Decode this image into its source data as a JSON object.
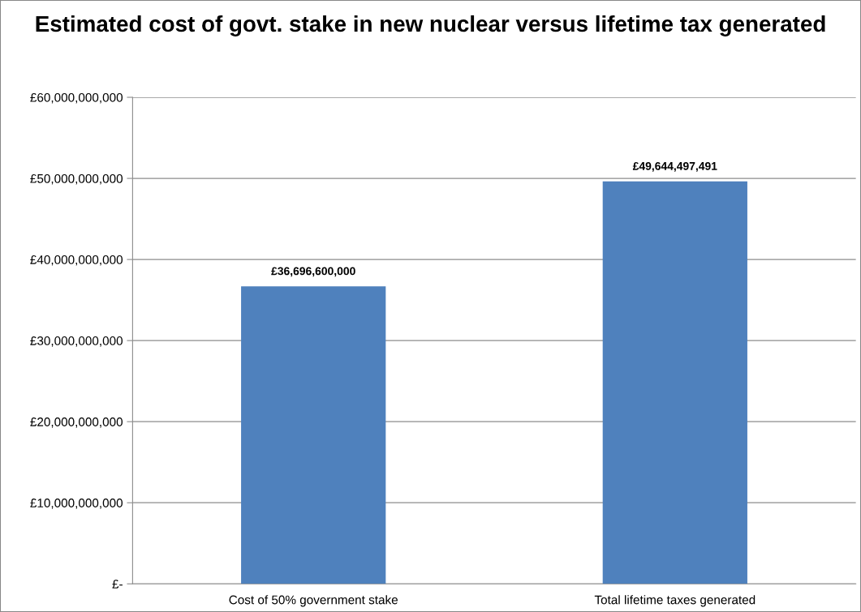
{
  "chart_data": {
    "type": "bar",
    "title": "Estimated cost of govt. stake in new nuclear versus lifetime tax generated",
    "categories": [
      "Cost of 50% government stake",
      "Total lifetime taxes generated"
    ],
    "values": [
      36696600000,
      49644497491
    ],
    "color": "#4f81bd",
    "value_labels": [
      "£36,696,600,000",
      "£49,644,497,491"
    ],
    "ylim": [
      0,
      60000000000
    ],
    "yticks": [
      {
        "value": 0,
        "label": "£-"
      },
      {
        "value": 10000000000,
        "label": "£10,000,000,000"
      },
      {
        "value": 20000000000,
        "label": "£20,000,000,000"
      },
      {
        "value": 30000000000,
        "label": "£30,000,000,000"
      },
      {
        "value": 40000000000,
        "label": "£40,000,000,000"
      },
      {
        "value": 50000000000,
        "label": "£50,000,000,000"
      },
      {
        "value": 60000000000,
        "label": "£60,000,000,000"
      }
    ],
    "grid": "y",
    "legend": false
  }
}
